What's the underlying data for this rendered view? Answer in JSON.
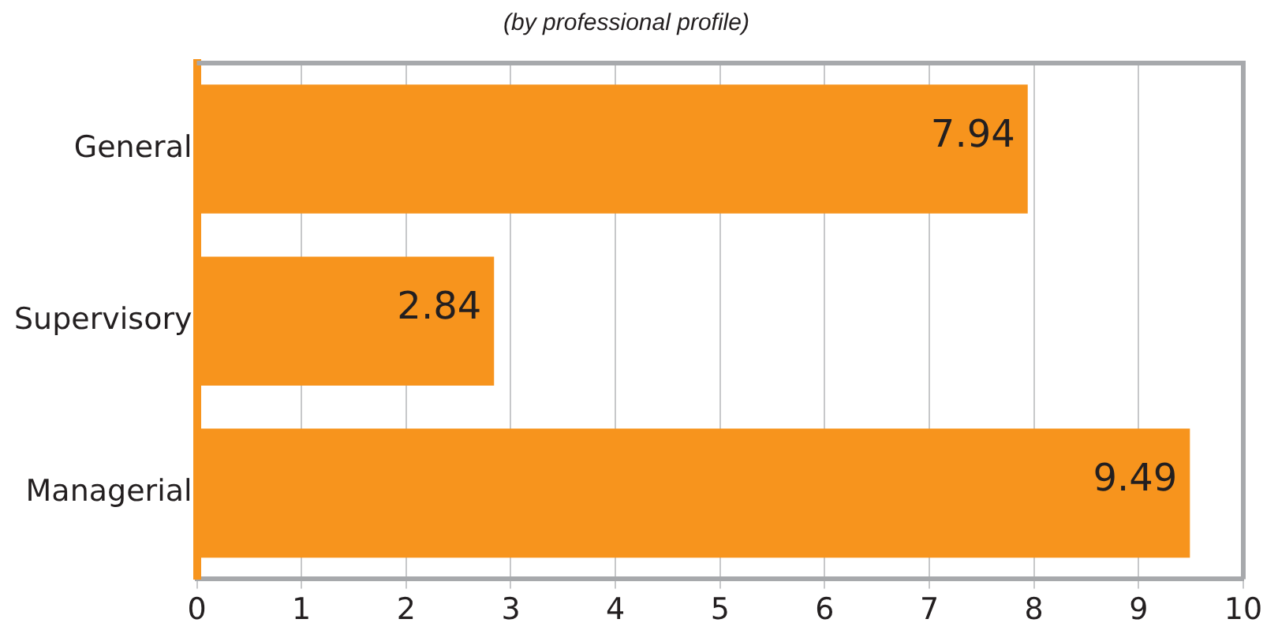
{
  "chart_data": {
    "type": "bar",
    "orientation": "horizontal",
    "subtitle": "(by professional profile)",
    "categories": [
      "General",
      "Supervisory",
      "Managerial"
    ],
    "values": [
      7.94,
      2.84,
      9.49
    ],
    "color": "#f7941d",
    "xlim": [
      0,
      10
    ],
    "xticks": [
      0,
      1,
      2,
      3,
      4,
      5,
      6,
      7,
      8,
      9,
      10
    ],
    "grid": "x",
    "data_labels": true,
    "legend": false
  }
}
